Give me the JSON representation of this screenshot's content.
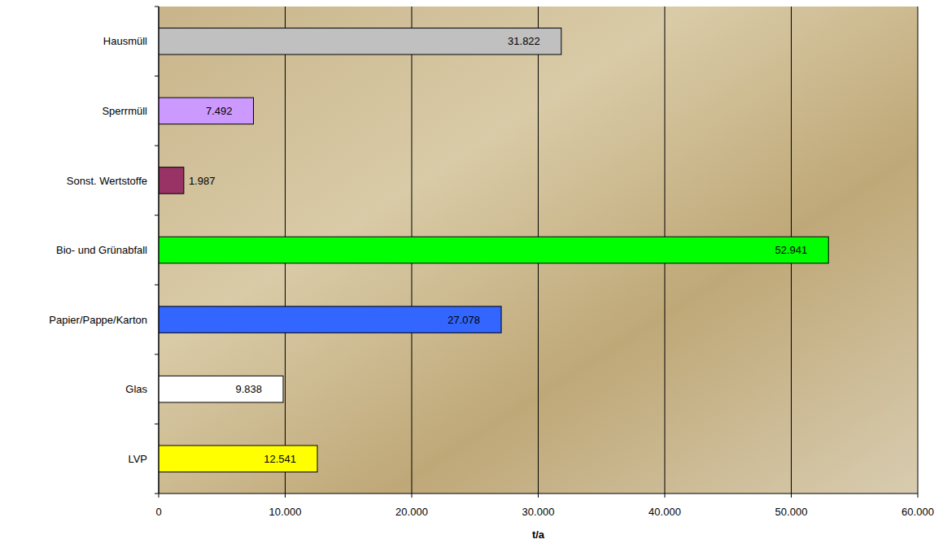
{
  "chart_data": {
    "type": "bar",
    "orientation": "horizontal",
    "categories": [
      "Hausmüll",
      "Sperrmüll",
      "Sonst. Wertstoffe",
      "Bio- und Grünabfall",
      "Papier/Pappe/Karton",
      "Glas",
      "LVP"
    ],
    "values": [
      31822,
      7492,
      1987,
      52941,
      27078,
      9838,
      12541
    ],
    "value_labels": [
      "31.822",
      "7.492",
      "1.987",
      "52.941",
      "27.078",
      "9.838",
      "12.541"
    ],
    "colors": [
      "#c0c0c0",
      "#cc99ff",
      "#993366",
      "#00ff00",
      "#3366ff",
      "#ffffff",
      "#ffff00"
    ],
    "x_label": "t/a",
    "xlim": [
      0,
      60000
    ],
    "xticks": [
      0,
      {
        "value": 10000,
        "label": "10.000"
      },
      {
        "value": 20000,
        "label": "20.000"
      },
      {
        "value": 30000,
        "label": "30.000"
      },
      {
        "value": 40000,
        "label": "40.000"
      },
      {
        "value": 50000,
        "label": "50.000"
      },
      {
        "value": 60000,
        "label": "60.000"
      }
    ],
    "grid": true,
    "data_labels": true
  }
}
